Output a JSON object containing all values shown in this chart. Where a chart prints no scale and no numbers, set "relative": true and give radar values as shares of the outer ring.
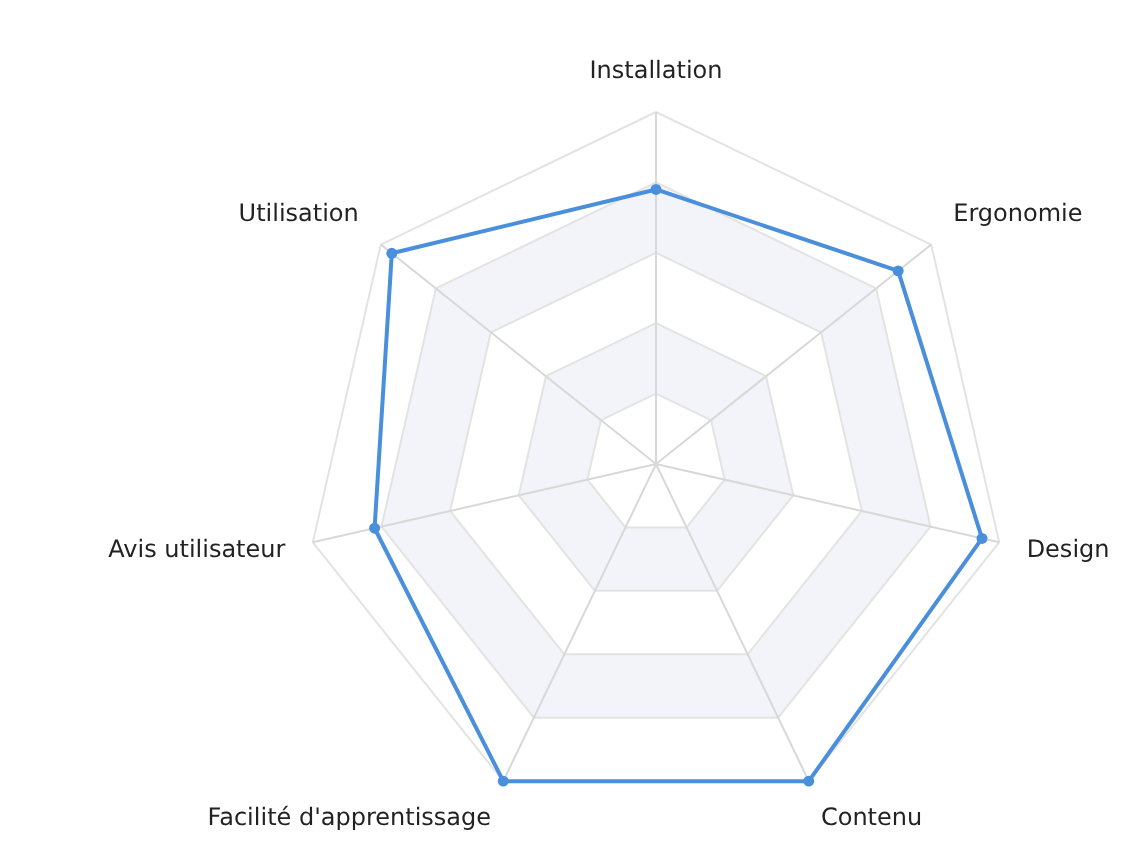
{
  "chart_data": {
    "type": "radar",
    "relative": true,
    "grid": true,
    "marker": "circle",
    "line_style": "solid",
    "categories": [
      "Installation",
      "Ergonomie",
      "Design",
      "Contenu",
      "Facilité d'apprentissage",
      "Avis utilisateur",
      "Utilisation"
    ],
    "series": [
      {
        "color": "#4a8fdb",
        "values": [
          0.78,
          0.88,
          0.95,
          1,
          1,
          0.82,
          0.96
        ]
      }
    ]
  }
}
